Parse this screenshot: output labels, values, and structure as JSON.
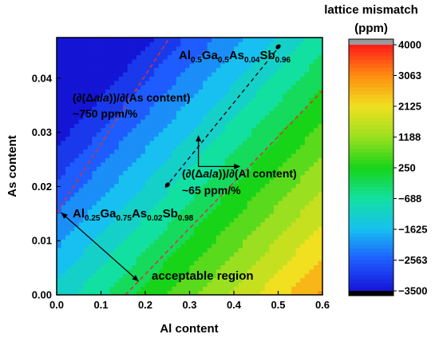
{
  "chart_data": {
    "type": "heatmap",
    "xlabel": "Al content",
    "ylabel": "As content",
    "xlim": [
      0,
      0.6
    ],
    "ylim": [
      0,
      0.0475
    ],
    "x_ticks": [
      "0.0",
      "0.1",
      "0.2",
      "0.3",
      "0.4",
      "0.5",
      "0.6"
    ],
    "y_ticks": [
      "0.00",
      "0.01",
      "0.02",
      "0.03",
      "0.04"
    ],
    "grid": false,
    "colorbar": {
      "title_line1": "lattice mismatch",
      "title_line2": "(ppm)",
      "range": [
        -3500,
        4000
      ],
      "ticks": [
        "4000",
        "3063",
        "2125",
        "1188",
        "250",
        "−688",
        "−1625",
        "−2563",
        "−3500"
      ],
      "tick_values": [
        4000,
        3063,
        2125,
        1188,
        250,
        -688,
        -1625,
        -2563,
        -3500
      ],
      "colors": [
        "#1515d6",
        "#1e5cff",
        "#17c0f0",
        "#12e0a0",
        "#18d418",
        "#9be020",
        "#f0e020",
        "#ff8c10",
        "#ff1a1a"
      ]
    },
    "mismatch_model": {
      "zero_line_x": [
        0.177,
        0.6
      ],
      "zero_line_y": [
        0,
        0.0386
      ],
      "ppm_per_percent_as": 750,
      "ppm_per_percent_al": 65
    },
    "tolerance_lines": [
      {
        "x": [
          0.0,
          0.255
        ],
        "y": [
          0.0152,
          0.0475
        ],
        "color": "#e03030"
      },
      {
        "x": [
          0.155,
          0.6
        ],
        "y": [
          0.0,
          0.0377
        ],
        "color": "#e03030"
      }
    ],
    "composition_line": {
      "x": [
        0.245,
        0.505
      ],
      "y": [
        0.0198,
        0.0461
      ]
    },
    "composition_points": [
      {
        "x": 0.5,
        "y": 0.0458
      },
      {
        "x": 0.25,
        "y": 0.0203
      }
    ],
    "boundary_arrow": {
      "from": [
        0.01,
        0.0152
      ],
      "to": [
        0.185,
        0.0025
      ]
    },
    "direction_arrows": {
      "origin": [
        0.32,
        0.0237
      ],
      "as_tip": [
        0.32,
        0.0295
      ],
      "al_tip": [
        0.415,
        0.0237
      ]
    },
    "annotations": {
      "top_right_composition": {
        "prefix": "Al",
        "s1": "0.5",
        "m1": "Ga",
        "s2": "0.5",
        "m2": "As",
        "s3": "0.04",
        "m3": "Sb",
        "s4": "0.96"
      },
      "bottom_left_composition": {
        "prefix": "Al",
        "s1": "0.25",
        "m1": "Ga",
        "s2": "0.75",
        "m2": "As",
        "s3": "0.02",
        "m3": "Sb",
        "s4": "0.98"
      },
      "as_sensitivity": {
        "line1_a": "(∂(Δ",
        "line1_a_it": "a",
        "line1_b": "/",
        "line1_b_it": "a",
        "line1_c": "))/∂(As content)",
        "line2": "~750 ppm/%"
      },
      "al_sensitivity": {
        "line1_a": "(∂(Δ",
        "line1_a_it": "a",
        "line1_b": "/",
        "line1_b_it": "a",
        "line1_c": "))/∂(Al content)",
        "line2": "~65 ppm/%"
      },
      "region_label": "acceptable region"
    }
  }
}
